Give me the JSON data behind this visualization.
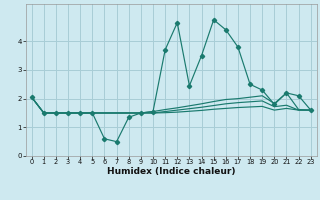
{
  "title": "",
  "xlabel": "Humidex (Indice chaleur)",
  "bg_color": "#cee9f0",
  "grid_color": "#a8cdd6",
  "line_color": "#1a7a6e",
  "xlim": [
    -0.5,
    23.5
  ],
  "ylim": [
    0,
    5.3
  ],
  "yticks": [
    0,
    1,
    2,
    3,
    4
  ],
  "xticks": [
    0,
    1,
    2,
    3,
    4,
    5,
    6,
    7,
    8,
    9,
    10,
    11,
    12,
    13,
    14,
    15,
    16,
    17,
    18,
    19,
    20,
    21,
    22,
    23
  ],
  "series1_x": [
    0,
    1,
    2,
    3,
    4,
    5,
    6,
    7,
    8,
    9,
    10,
    11,
    12,
    13,
    14,
    15,
    16,
    17,
    18,
    19,
    20,
    21,
    22,
    23
  ],
  "series1_y": [
    2.05,
    1.5,
    1.5,
    1.5,
    1.5,
    1.5,
    0.6,
    0.5,
    1.35,
    1.5,
    1.55,
    3.7,
    4.65,
    2.45,
    3.5,
    4.75,
    4.4,
    3.8,
    2.5,
    2.3,
    1.8,
    2.2,
    2.1,
    1.6
  ],
  "series2_x": [
    0,
    1,
    2,
    3,
    4,
    5,
    6,
    7,
    8,
    9,
    10,
    11,
    12,
    13,
    14,
    15,
    16,
    17,
    18,
    19,
    20,
    21,
    22,
    23
  ],
  "series2_y": [
    2.05,
    1.5,
    1.5,
    1.5,
    1.5,
    1.5,
    1.5,
    1.5,
    1.5,
    1.5,
    1.55,
    1.62,
    1.68,
    1.75,
    1.82,
    1.9,
    1.97,
    2.0,
    2.05,
    2.1,
    1.83,
    2.2,
    1.62,
    1.6
  ],
  "series3_x": [
    0,
    1,
    2,
    3,
    4,
    5,
    6,
    7,
    8,
    9,
    10,
    11,
    12,
    13,
    14,
    15,
    16,
    17,
    18,
    19,
    20,
    21,
    22,
    23
  ],
  "series3_y": [
    2.05,
    1.5,
    1.5,
    1.5,
    1.5,
    1.5,
    1.5,
    1.5,
    1.5,
    1.5,
    1.5,
    1.55,
    1.6,
    1.65,
    1.7,
    1.76,
    1.82,
    1.86,
    1.89,
    1.92,
    1.72,
    1.77,
    1.6,
    1.6
  ],
  "series4_x": [
    0,
    1,
    2,
    3,
    4,
    5,
    6,
    7,
    8,
    9,
    10,
    11,
    12,
    13,
    14,
    15,
    16,
    17,
    18,
    19,
    20,
    21,
    22,
    23
  ],
  "series4_y": [
    2.05,
    1.5,
    1.5,
    1.5,
    1.5,
    1.5,
    1.5,
    1.5,
    1.5,
    1.5,
    1.5,
    1.51,
    1.53,
    1.56,
    1.59,
    1.63,
    1.66,
    1.69,
    1.71,
    1.73,
    1.6,
    1.66,
    1.6,
    1.6
  ]
}
